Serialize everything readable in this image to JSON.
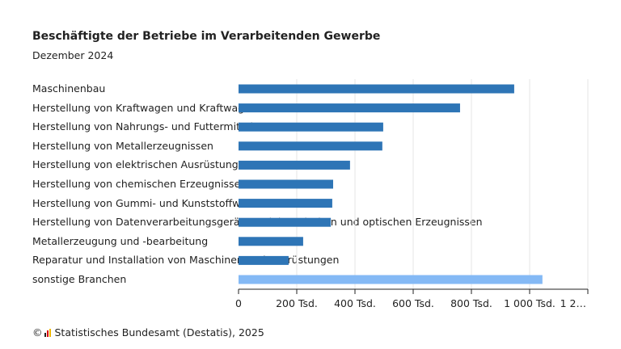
{
  "chart_data": {
    "type": "bar",
    "orientation": "horizontal",
    "title": "Beschäftigte der Betriebe im Verarbeitenden Gewerbe",
    "subtitle": "Dezember 2024",
    "categories": [
      "Maschinenbau",
      "Herstellung von Kraftwagen und Kraftwagenteilen",
      "Herstellung von Nahrungs- und Futtermitteln",
      "Herstellung von Metallerzeugnissen",
      "Herstellung von elektrischen Ausrüstungen",
      "Herstellung von chemischen Erzeugnissen",
      "Herstellung von Gummi- und Kunststoffwaren",
      "Herstellung von Datenverarbeitungsgeräten, elektronischen und optischen Erzeugnissen",
      "Metallerzeugung und -bearbeitung",
      "Reparatur und Installation von Maschinen und Ausrüstungen",
      "sonstige Branchen"
    ],
    "values": [
      947000,
      761000,
      497000,
      494000,
      383000,
      325000,
      322000,
      317000,
      222000,
      172000,
      1044000
    ],
    "highlight_colors": [
      "#2e75b6",
      "#2e75b6",
      "#2e75b6",
      "#2e75b6",
      "#2e75b6",
      "#2e75b6",
      "#2e75b6",
      "#2e75b6",
      "#2e75b6",
      "#2e75b6",
      "#84b9f5"
    ],
    "xlim": [
      0,
      1200000
    ],
    "xticks": [
      0,
      200000,
      400000,
      600000,
      800000,
      1000000,
      1200000
    ],
    "xtick_labels": [
      "0",
      "200 Tsd.",
      "400 Tsd.",
      "600 Tsd.",
      "800 Tsd.",
      "1 000 Tsd.",
      "1 2…"
    ],
    "grid": "vertical"
  },
  "footer": {
    "source": "Statistisches Bundesamt (Destatis), 2025",
    "copyright": "©"
  }
}
